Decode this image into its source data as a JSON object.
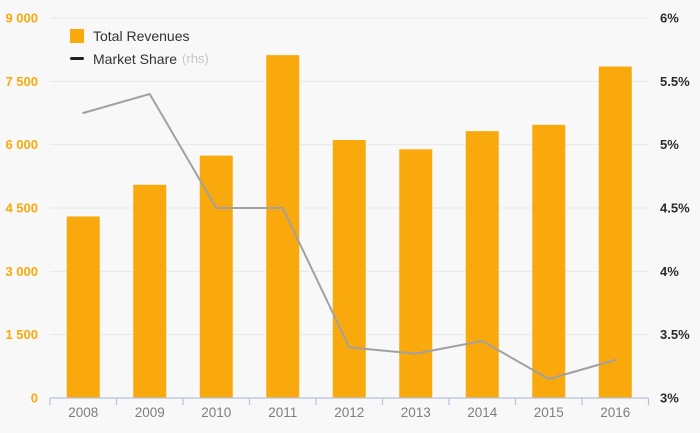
{
  "chart_data": {
    "type": "combo-bar-line",
    "title": "",
    "categories": [
      "2008",
      "2009",
      "2010",
      "2011",
      "2012",
      "2013",
      "2014",
      "2015",
      "2016"
    ],
    "series": [
      {
        "name": "Total Revenues",
        "type": "bar",
        "axis": "left",
        "color": "#F9A90C",
        "values": [
          4300,
          5050,
          5740,
          8120,
          6110,
          5890,
          6320,
          6470,
          7850
        ]
      },
      {
        "name": "Market Share",
        "type": "line",
        "axis": "right",
        "axis_note": "(rhs)",
        "color": "#A1A1A1",
        "legend_marker_color": "#1F1F1F",
        "values": [
          5.25,
          5.4,
          4.5,
          4.5,
          3.4,
          3.35,
          3.45,
          3.15,
          3.3
        ]
      }
    ],
    "left_axis": {
      "min": 0,
      "max": 9000,
      "tick_values": [
        0,
        1500,
        3000,
        4500,
        6000,
        7500,
        9000
      ],
      "tick_labels": [
        "0",
        "1 500",
        "3 000",
        "4 500",
        "6 000",
        "7 500",
        "9 000"
      ],
      "text_color": "#F9A90C"
    },
    "right_axis": {
      "min": 3,
      "max": 6,
      "tick_values": [
        3,
        3.5,
        4,
        4.5,
        5,
        5.5,
        6
      ],
      "tick_labels": [
        "3%",
        "3.5%",
        "4%",
        "4.5%",
        "5%",
        "5.5%",
        "6%"
      ],
      "text_color": "#2B2B2B"
    },
    "x_axis": {
      "text_color": "#7F7F7F",
      "line_color": "#B7C1DE"
    },
    "grid": {
      "horizontal": true,
      "vertical": false,
      "color": "#E9E9E9"
    },
    "background": "#F8F8F8",
    "legend_position": "top-left",
    "legend_text_color": "#333333",
    "legend_suffix_color": "#C6C6C6"
  }
}
